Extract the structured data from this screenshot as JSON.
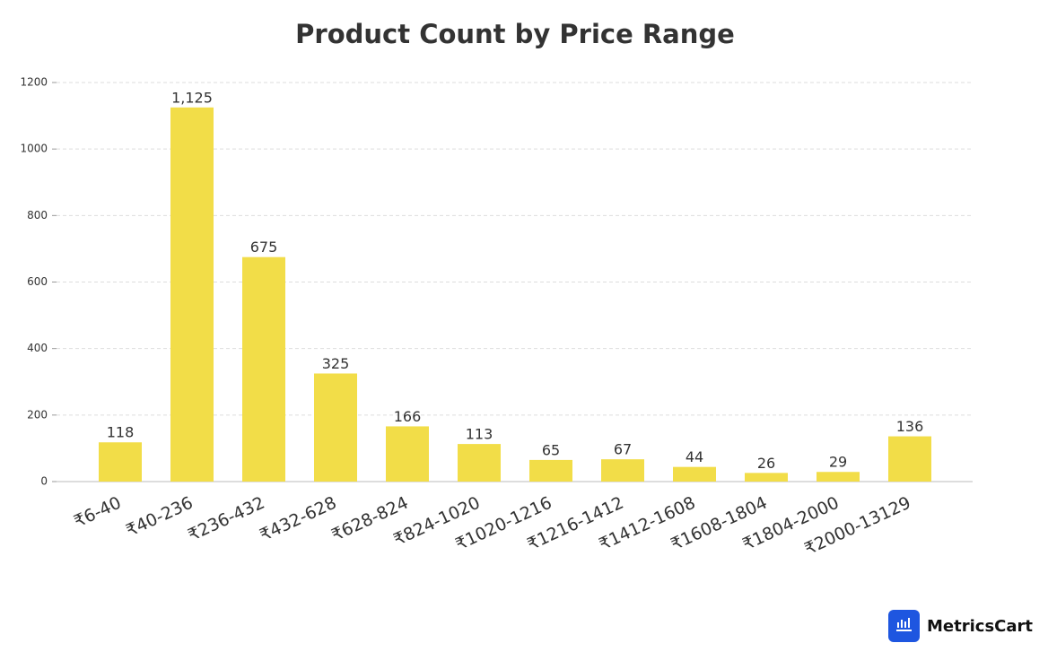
{
  "chart_data": {
    "type": "bar",
    "title": "Product Count by Price Range",
    "categories": [
      "₹6-40",
      "₹40-236",
      "₹236-432",
      "₹432-628",
      "₹628-824",
      "₹824-1020",
      "₹1020-1216",
      "₹1216-1412",
      "₹1412-1608",
      "₹1608-1804",
      "₹1804-2000",
      "₹2000-13129"
    ],
    "values": [
      118,
      1125,
      675,
      325,
      166,
      113,
      65,
      67,
      44,
      26,
      29,
      136
    ],
    "value_labels": [
      "118",
      "1,125",
      "675",
      "325",
      "166",
      "113",
      "65",
      "67",
      "44",
      "26",
      "29",
      "136"
    ],
    "color": "#f2dd48",
    "ylim": [
      0,
      1200
    ],
    "yticks": [
      0,
      200,
      400,
      600,
      800,
      1000,
      1200
    ],
    "grid": true,
    "logo_text": "MetricsCart"
  }
}
